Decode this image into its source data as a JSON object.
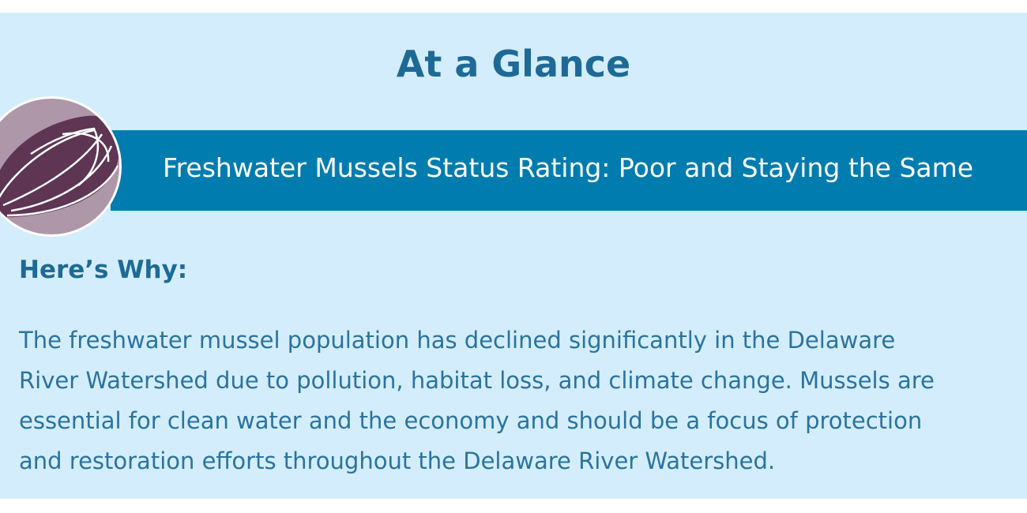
{
  "title": "At a Glance",
  "banner": {
    "text": "Freshwater Mussels Status Rating: Poor and Staying the Same",
    "icon": "mussel-icon"
  },
  "why": {
    "heading": "Here’s Why:",
    "lines": [
      "The freshwater mussel population has declined significantly in the Delaware",
      "River Watershed due to pollution, habitat loss, and climate change. Mussels are",
      "essential for clean water and the economy and should be a focus of protection",
      "and restoration efforts throughout the Delaware River Watershed."
    ]
  },
  "colors": {
    "background": "#d3edfc",
    "banner": "#007cae",
    "heading": "#1e6a96",
    "mussel": "#5e3553"
  }
}
